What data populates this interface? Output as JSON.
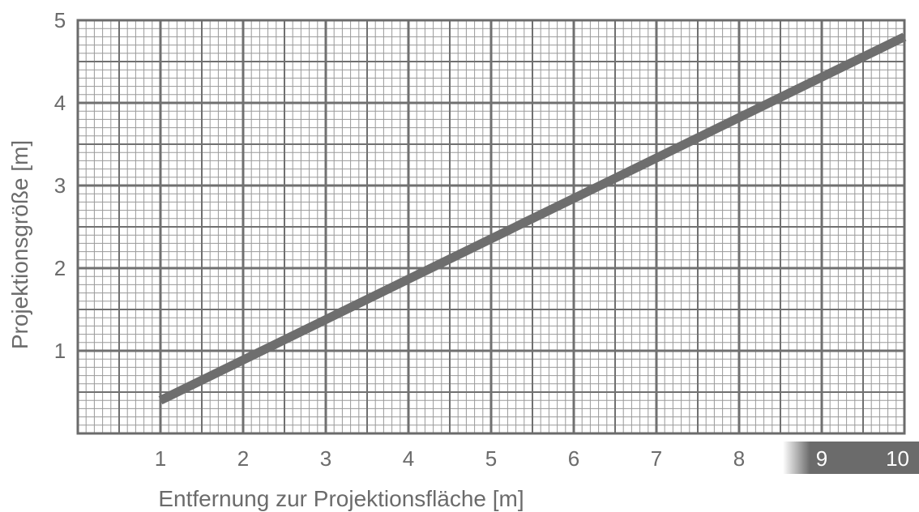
{
  "chart_data": {
    "type": "line",
    "xlabel": "Entfernung zur Projektionsfläche [m]",
    "ylabel": "Projektionsgröße [m]",
    "xlim": [
      0,
      10
    ],
    "ylim": [
      0,
      5
    ],
    "x_ticks": [
      1,
      2,
      3,
      4,
      5,
      6,
      7,
      8,
      9,
      10
    ],
    "y_ticks": [
      1,
      2,
      3,
      4,
      5
    ],
    "highlighted_x_ticks": [
      9,
      10
    ],
    "grid": true,
    "legend": "none",
    "colors": {
      "line": "#6e6e6e",
      "grid_major": "#707070",
      "grid_minor": "#9a9a9a",
      "highlight_band": "#6b6b6b",
      "text": "#6b6b6b"
    },
    "series": [
      {
        "x": [
          1,
          10
        ],
        "y": [
          0.4,
          4.8
        ]
      }
    ]
  }
}
